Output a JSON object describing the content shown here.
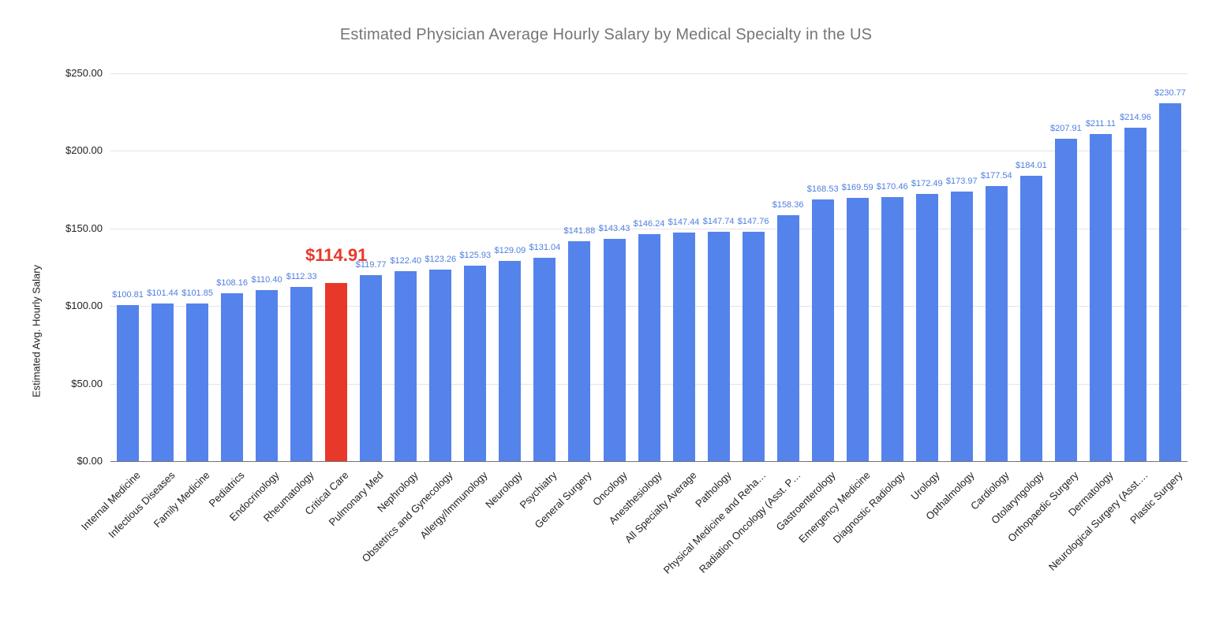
{
  "chart_data": {
    "type": "bar",
    "title": "Estimated Physician Average Hourly Salary by Medical Specialty in the US",
    "xlabel": "",
    "ylabel": "Estimated Avg. Hourly Salary",
    "ylim": [
      0,
      250
    ],
    "ytick_step": 50,
    "ytick_labels": [
      "$0.00",
      "$50.00",
      "$100.00",
      "$150.00",
      "$200.00",
      "$250.00"
    ],
    "grid": true,
    "legend_position": "none",
    "categories": [
      "Internal Medicine",
      "Infectious Diseases",
      "Family Medicine",
      "Pediatrics",
      "Endocrinology",
      "Rheumatology",
      "Critical Care",
      "Pulmonary Med",
      "Nephrology",
      "Obstetrics and Gynecology",
      "Allergy/Immunology",
      "Neurology",
      "Psychiatry",
      "General Surgery",
      "Oncology",
      "Anesthesiology",
      "All Specialty Average",
      "Pathology",
      "Physical Medicine and Reha…",
      "Radiation Oncology (Asst. P…",
      "Gastroenterology",
      "Emergency Medicine",
      "Diagnostic Radiology",
      "Urology",
      "Opthalmology",
      "Cardiology",
      "Otolaryngology",
      "Orthopaedic Surgery",
      "Dermatology",
      "Neurological Surgery (Asst.…",
      "Plastic Surgery"
    ],
    "values": [
      100.81,
      101.44,
      101.85,
      108.16,
      110.4,
      112.33,
      114.91,
      119.77,
      122.4,
      123.26,
      125.93,
      129.09,
      131.04,
      141.88,
      143.43,
      146.24,
      147.44,
      147.74,
      147.76,
      158.36,
      168.53,
      169.59,
      170.46,
      172.49,
      173.97,
      177.54,
      184.01,
      207.91,
      211.11,
      214.96,
      230.77
    ],
    "value_labels": [
      "$100.81",
      "$101.44",
      "$101.85",
      "$108.16",
      "$110.40",
      "$112.33",
      "$114.91",
      "$119.77",
      "$122.40",
      "$123.26",
      "$125.93",
      "$129.09",
      "$131.04",
      "$141.88",
      "$143.43",
      "$146.24",
      "$147.44",
      "$147.74",
      "$147.76",
      "$158.36",
      "$168.53",
      "$169.59",
      "$170.46",
      "$172.49",
      "$173.97",
      "$177.54",
      "$184.01",
      "$207.91",
      "$211.11",
      "$214.96",
      "$230.77"
    ],
    "highlight_index": 6,
    "highlight_value_label": "$114.91",
    "colors": {
      "bar": "#5583EC",
      "highlight_bar": "#E8382A",
      "value_label": "#4D7EE0",
      "highlight_value_label": "#E8382A",
      "title_text": "#757575",
      "axis_text": "#222222",
      "gridline": "#E3E3E3",
      "baseline": "#757575",
      "background": "#FFFFFF"
    }
  }
}
